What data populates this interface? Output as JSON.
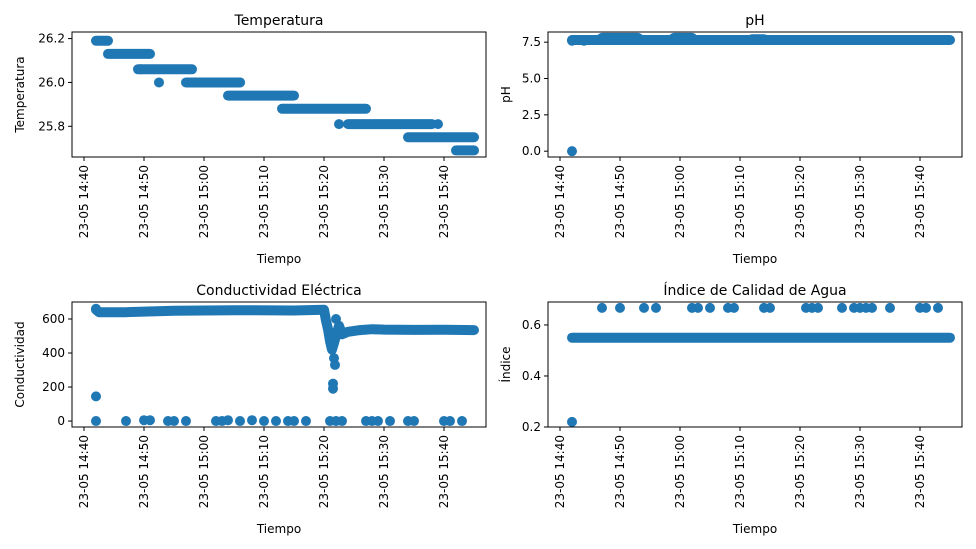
{
  "figure": {
    "marker_color": "#1f77b4"
  },
  "chart_data": [
    {
      "type": "scatter",
      "title": "Temperatura",
      "xlabel": "Tiempo",
      "ylabel": "Temperatura",
      "x_axis": "time",
      "xlim": [
        "2023-05-23 14:38",
        "2023-05-23 15:47"
      ],
      "xticks": [
        "2023-05-23 14:40",
        "2023-05-23 14:50",
        "2023-05-23 15:00",
        "2023-05-23 15:10",
        "2023-05-23 15:20",
        "2023-05-23 15:30",
        "2023-05-23 15:40"
      ],
      "xtick_labels": [
        "23-05 14:40",
        "23-05 14:50",
        "23-05 15:00",
        "23-05 15:10",
        "23-05 15:20",
        "23-05 15:30",
        "23-05 15:40"
      ],
      "ylim": [
        25.66,
        26.23
      ],
      "yticks": [
        25.8,
        26.0,
        26.2
      ],
      "ytick_labels": [
        "25.8",
        "26.0",
        "26.2"
      ],
      "grid": false,
      "segments": [
        {
          "x_start": "2023-05-23 14:42:00",
          "x_end": "2023-05-23 14:44:00",
          "y": 26.19
        },
        {
          "x_start": "2023-05-23 14:44:00",
          "x_end": "2023-05-23 14:51:00",
          "y": 26.13
        },
        {
          "x_start": "2023-05-23 14:49:00",
          "x_end": "2023-05-23 14:58:00",
          "y": 26.06
        },
        {
          "x_start": "2023-05-23 14:57:00",
          "x_end": "2023-05-23 15:06:00",
          "y": 26.0
        },
        {
          "x_start": "2023-05-23 15:04:00",
          "x_end": "2023-05-23 15:15:00",
          "y": 25.94
        },
        {
          "x_start": "2023-05-23 15:13:00",
          "x_end": "2023-05-23 15:27:00",
          "y": 25.88
        },
        {
          "x_start": "2023-05-23 15:24:00",
          "x_end": "2023-05-23 15:38:00",
          "y": 25.81
        },
        {
          "x_start": "2023-05-23 15:34:00",
          "x_end": "2023-05-23 15:45:00",
          "y": 25.75
        },
        {
          "x_start": "2023-05-23 15:42:00",
          "x_end": "2023-05-23 15:45:00",
          "y": 25.69
        }
      ],
      "points": [
        {
          "x": "2023-05-23 14:49:30",
          "y": 26.06
        },
        {
          "x": "2023-05-23 14:52:30",
          "y": 26.0
        },
        {
          "x": "2023-05-23 15:06:00",
          "y": 26.0
        },
        {
          "x": "2023-05-23 15:22:30",
          "y": 25.81
        },
        {
          "x": "2023-05-23 15:39:00",
          "y": 25.81
        }
      ]
    },
    {
      "type": "scatter",
      "title": "pH",
      "xlabel": "Tiempo",
      "ylabel": "pH",
      "x_axis": "time",
      "xlim": [
        "2023-05-23 14:38",
        "2023-05-23 15:47"
      ],
      "xticks": [
        "2023-05-23 14:40",
        "2023-05-23 14:50",
        "2023-05-23 15:00",
        "2023-05-23 15:10",
        "2023-05-23 15:20",
        "2023-05-23 15:30",
        "2023-05-23 15:40"
      ],
      "xtick_labels": [
        "23-05 14:40",
        "23-05 14:50",
        "23-05 15:00",
        "23-05 15:10",
        "23-05 15:20",
        "23-05 15:30",
        "23-05 15:40"
      ],
      "ylim": [
        -0.4,
        8.2
      ],
      "yticks": [
        0.0,
        2.5,
        5.0,
        7.5
      ],
      "ytick_labels": [
        "0.0",
        "2.5",
        "5.0",
        "7.5"
      ],
      "grid": false,
      "segments": [
        {
          "x_start": "2023-05-23 14:42:00",
          "x_end": "2023-05-23 15:45:00",
          "y": 7.65
        },
        {
          "x_start": "2023-05-23 14:47:00",
          "x_end": "2023-05-23 14:53:00",
          "y": 7.8
        },
        {
          "x_start": "2023-05-23 14:59:00",
          "x_end": "2023-05-23 15:02:00",
          "y": 7.8
        },
        {
          "x_start": "2023-05-23 15:12:00",
          "x_end": "2023-05-23 15:14:00",
          "y": 7.7
        }
      ],
      "points": [
        {
          "x": "2023-05-23 14:42:00",
          "y": 0.0
        },
        {
          "x": "2023-05-23 14:42:00",
          "y": 7.6
        },
        {
          "x": "2023-05-23 14:44:00",
          "y": 7.6
        }
      ]
    },
    {
      "type": "scatter",
      "title": "Conductividad Eléctrica",
      "xlabel": "Tiempo",
      "ylabel": "Conductividad",
      "x_axis": "time",
      "xlim": [
        "2023-05-23 14:38",
        "2023-05-23 15:47"
      ],
      "xticks": [
        "2023-05-23 14:40",
        "2023-05-23 14:50",
        "2023-05-23 15:00",
        "2023-05-23 15:10",
        "2023-05-23 15:20",
        "2023-05-23 15:30",
        "2023-05-23 15:40"
      ],
      "xtick_labels": [
        "23-05 14:40",
        "23-05 14:50",
        "23-05 15:00",
        "23-05 15:10",
        "23-05 15:20",
        "23-05 15:30",
        "23-05 15:40"
      ],
      "ylim": [
        -35,
        700
      ],
      "yticks": [
        0,
        200,
        400,
        600
      ],
      "ytick_labels": [
        "0",
        "200",
        "400",
        "600"
      ],
      "grid": false,
      "curve": [
        {
          "x": "2023-05-23 14:42:00",
          "y": 655
        },
        {
          "x": "2023-05-23 14:42:30",
          "y": 640
        },
        {
          "x": "2023-05-23 14:47:00",
          "y": 640
        },
        {
          "x": "2023-05-23 14:55:00",
          "y": 648
        },
        {
          "x": "2023-05-23 15:05:00",
          "y": 652
        },
        {
          "x": "2023-05-23 15:15:00",
          "y": 650
        },
        {
          "x": "2023-05-23 15:20:00",
          "y": 655
        },
        {
          "x": "2023-05-23 15:20:20",
          "y": 590
        },
        {
          "x": "2023-05-23 15:20:40",
          "y": 540
        },
        {
          "x": "2023-05-23 15:21:00",
          "y": 470
        },
        {
          "x": "2023-05-23 15:21:20",
          "y": 420
        },
        {
          "x": "2023-05-23 15:21:40",
          "y": 460
        },
        {
          "x": "2023-05-23 15:22:00",
          "y": 500
        },
        {
          "x": "2023-05-23 15:22:30",
          "y": 560
        },
        {
          "x": "2023-05-23 15:23:00",
          "y": 510
        },
        {
          "x": "2023-05-23 15:24:00",
          "y": 525
        },
        {
          "x": "2023-05-23 15:26:00",
          "y": 535
        },
        {
          "x": "2023-05-23 15:28:00",
          "y": 540
        },
        {
          "x": "2023-05-23 15:30:00",
          "y": 538
        },
        {
          "x": "2023-05-23 15:35:00",
          "y": 536
        },
        {
          "x": "2023-05-23 15:40:00",
          "y": 537
        },
        {
          "x": "2023-05-23 15:45:00",
          "y": 535
        }
      ],
      "points": [
        {
          "x": "2023-05-23 14:42:00",
          "y": 660
        },
        {
          "x": "2023-05-23 14:42:00",
          "y": 145
        },
        {
          "x": "2023-05-23 14:42:00",
          "y": 0
        },
        {
          "x": "2023-05-23 14:47:00",
          "y": 0
        },
        {
          "x": "2023-05-23 14:50:00",
          "y": 5
        },
        {
          "x": "2023-05-23 14:51:00",
          "y": 5
        },
        {
          "x": "2023-05-23 14:54:00",
          "y": 0
        },
        {
          "x": "2023-05-23 14:55:00",
          "y": 0
        },
        {
          "x": "2023-05-23 14:57:00",
          "y": 0
        },
        {
          "x": "2023-05-23 15:02:00",
          "y": 0
        },
        {
          "x": "2023-05-23 15:03:00",
          "y": 0
        },
        {
          "x": "2023-05-23 15:04:00",
          "y": 5
        },
        {
          "x": "2023-05-23 15:06:00",
          "y": 0
        },
        {
          "x": "2023-05-23 15:08:00",
          "y": 5
        },
        {
          "x": "2023-05-23 15:10:00",
          "y": 0
        },
        {
          "x": "2023-05-23 15:12:00",
          "y": 0
        },
        {
          "x": "2023-05-23 15:14:00",
          "y": 0
        },
        {
          "x": "2023-05-23 15:15:00",
          "y": 0
        },
        {
          "x": "2023-05-23 15:17:00",
          "y": 0
        },
        {
          "x": "2023-05-23 15:21:00",
          "y": 0
        },
        {
          "x": "2023-05-23 15:22:00",
          "y": 0
        },
        {
          "x": "2023-05-23 15:21:30",
          "y": 220
        },
        {
          "x": "2023-05-23 15:21:30",
          "y": 190
        },
        {
          "x": "2023-05-23 15:21:40",
          "y": 370
        },
        {
          "x": "2023-05-23 15:21:50",
          "y": 330
        },
        {
          "x": "2023-05-23 15:22:00",
          "y": 600
        },
        {
          "x": "2023-05-23 15:23:00",
          "y": 0
        },
        {
          "x": "2023-05-23 15:27:00",
          "y": 0
        },
        {
          "x": "2023-05-23 15:28:00",
          "y": 0
        },
        {
          "x": "2023-05-23 15:29:00",
          "y": 0
        },
        {
          "x": "2023-05-23 15:31:00",
          "y": 0
        },
        {
          "x": "2023-05-23 15:34:00",
          "y": 0
        },
        {
          "x": "2023-05-23 15:35:00",
          "y": 0
        },
        {
          "x": "2023-05-23 15:40:00",
          "y": 0
        },
        {
          "x": "2023-05-23 15:41:00",
          "y": 0
        },
        {
          "x": "2023-05-23 15:43:00",
          "y": 0
        }
      ]
    },
    {
      "type": "scatter",
      "title": "Índice de Calidad de Agua",
      "xlabel": "Tiempo",
      "ylabel": "Índice",
      "x_axis": "time",
      "xlim": [
        "2023-05-23 14:38",
        "2023-05-23 15:47"
      ],
      "xticks": [
        "2023-05-23 14:40",
        "2023-05-23 14:50",
        "2023-05-23 15:00",
        "2023-05-23 15:10",
        "2023-05-23 15:20",
        "2023-05-23 15:30",
        "2023-05-23 15:40"
      ],
      "xtick_labels": [
        "23-05 14:40",
        "23-05 14:50",
        "23-05 15:00",
        "23-05 15:10",
        "23-05 15:20",
        "23-05 15:30",
        "23-05 15:40"
      ],
      "ylim": [
        0.2,
        0.69
      ],
      "yticks": [
        0.2,
        0.4,
        0.6
      ],
      "ytick_labels": [
        "0.2",
        "0.4",
        "0.6"
      ],
      "grid": false,
      "segments": [
        {
          "x_start": "2023-05-23 14:42:00",
          "x_end": "2023-05-23 15:45:00",
          "y": 0.55
        }
      ],
      "points": [
        {
          "x": "2023-05-23 14:42:00",
          "y": 0.22
        },
        {
          "x": "2023-05-23 14:47:00",
          "y": 0.667
        },
        {
          "x": "2023-05-23 14:50:00",
          "y": 0.667
        },
        {
          "x": "2023-05-23 14:54:00",
          "y": 0.667
        },
        {
          "x": "2023-05-23 14:56:00",
          "y": 0.667
        },
        {
          "x": "2023-05-23 15:02:00",
          "y": 0.667
        },
        {
          "x": "2023-05-23 15:03:00",
          "y": 0.667
        },
        {
          "x": "2023-05-23 15:05:00",
          "y": 0.667
        },
        {
          "x": "2023-05-23 15:08:00",
          "y": 0.667
        },
        {
          "x": "2023-05-23 15:09:00",
          "y": 0.667
        },
        {
          "x": "2023-05-23 15:14:00",
          "y": 0.667
        },
        {
          "x": "2023-05-23 15:15:00",
          "y": 0.667
        },
        {
          "x": "2023-05-23 15:21:00",
          "y": 0.667
        },
        {
          "x": "2023-05-23 15:22:00",
          "y": 0.667
        },
        {
          "x": "2023-05-23 15:23:00",
          "y": 0.667
        },
        {
          "x": "2023-05-23 15:27:00",
          "y": 0.667
        },
        {
          "x": "2023-05-23 15:29:00",
          "y": 0.667
        },
        {
          "x": "2023-05-23 15:30:00",
          "y": 0.667
        },
        {
          "x": "2023-05-23 15:31:00",
          "y": 0.667
        },
        {
          "x": "2023-05-23 15:32:00",
          "y": 0.667
        },
        {
          "x": "2023-05-23 15:35:00",
          "y": 0.667
        },
        {
          "x": "2023-05-23 15:40:00",
          "y": 0.667
        },
        {
          "x": "2023-05-23 15:41:00",
          "y": 0.667
        },
        {
          "x": "2023-05-23 15:43:00",
          "y": 0.667
        }
      ]
    }
  ]
}
